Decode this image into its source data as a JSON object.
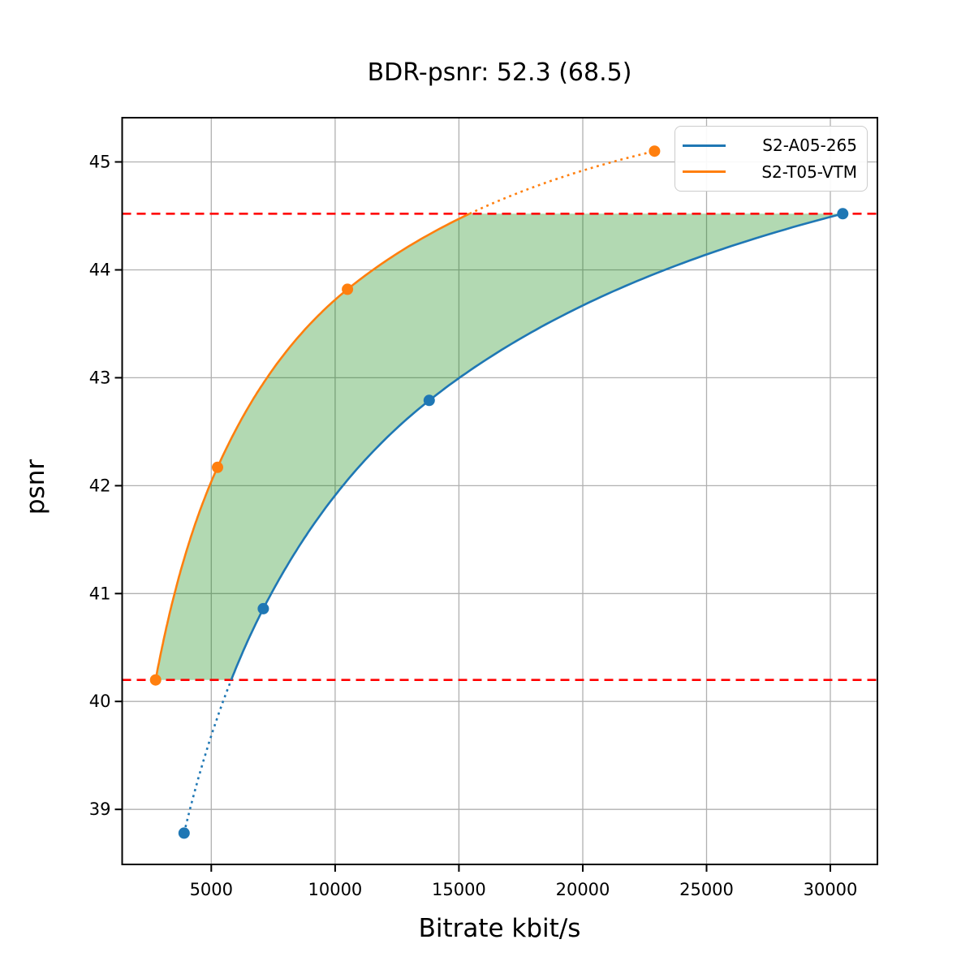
{
  "chart_data": {
    "type": "line",
    "title": "BDR-psnr: 52.3 (68.5)",
    "xlabel": "Bitrate kbit/s",
    "ylabel": "psnr",
    "xlim": [
      1400,
      31900
    ],
    "ylim": [
      38.49,
      45.41
    ],
    "x_ticks": [
      5000,
      10000,
      15000,
      20000,
      25000,
      30000
    ],
    "y_ticks": [
      39,
      40,
      41,
      42,
      43,
      44,
      45
    ],
    "grid": true,
    "legend_position": "upper right",
    "interpolation": "monotone cubic in log10(bitrate)",
    "series": [
      {
        "name": "S2-A05-265",
        "color": "#1f77b4",
        "points": [
          [
            3900,
            38.78
          ],
          [
            7100,
            40.86
          ],
          [
            13800,
            42.79
          ],
          [
            30500,
            44.52
          ]
        ],
        "dotted_below_y": 40.2
      },
      {
        "name": "S2-T05-VTM",
        "color": "#ff7f0e",
        "points": [
          [
            2750,
            40.2
          ],
          [
            5250,
            42.17
          ],
          [
            10500,
            43.82
          ],
          [
            22900,
            45.1
          ]
        ],
        "dotted_above_y": 44.52
      }
    ],
    "reference_lines": [
      {
        "y": 44.52,
        "color": "#ff0000",
        "style": "dashed"
      },
      {
        "y": 40.2,
        "color": "#ff0000",
        "style": "dashed"
      }
    ],
    "shaded_region": {
      "between_series": [
        "S2-T05-VTM",
        "S2-A05-265"
      ],
      "psnr_range": [
        40.2,
        44.52
      ],
      "color": "#008000",
      "alpha": 0.3
    }
  },
  "colors": {
    "grid": "#b0b0b0",
    "spine": "#000000",
    "blue_series": "#1f77b4",
    "orange_series": "#ff7f0e",
    "reference_red": "#ff0000",
    "shaded_fill": "rgba(0,128,0,0.3)"
  }
}
